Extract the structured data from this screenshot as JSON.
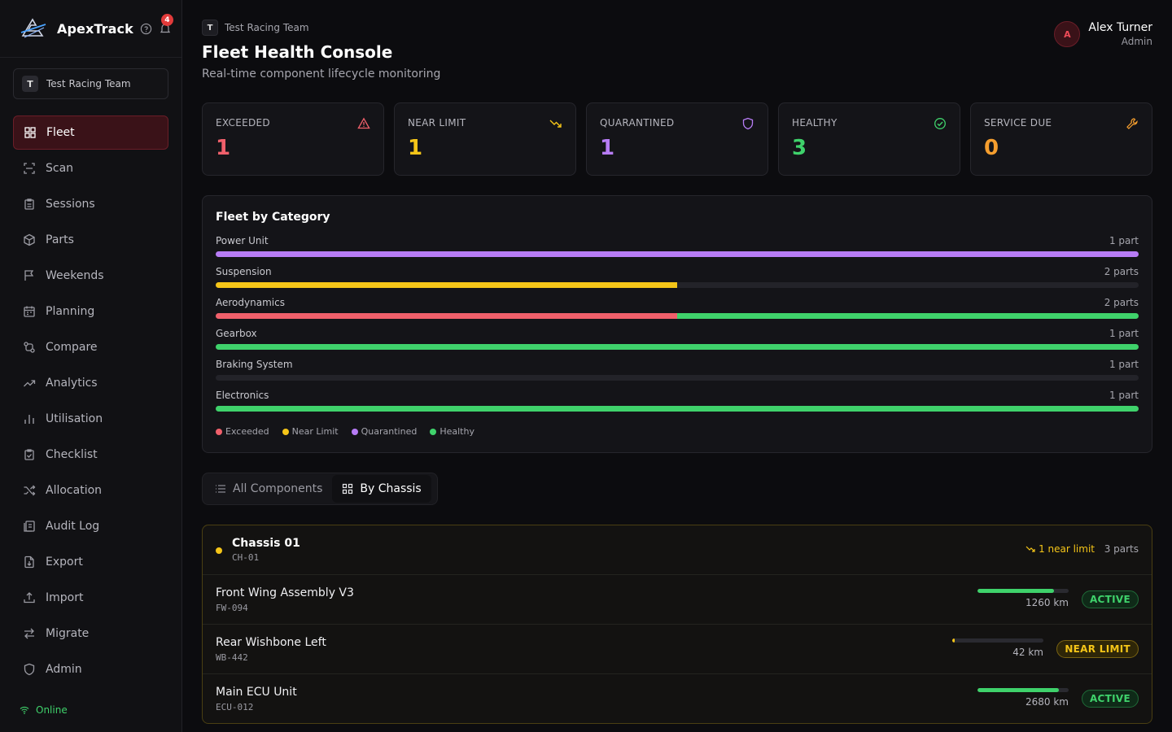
{
  "brand": {
    "name": "ApexTrack",
    "notifications": "4"
  },
  "team": {
    "initial": "T",
    "name": "Test Racing Team"
  },
  "nav": [
    {
      "label": "Fleet",
      "icon": "grid-icon",
      "active": true
    },
    {
      "label": "Scan",
      "icon": "scan-icon"
    },
    {
      "label": "Sessions",
      "icon": "clipboard-icon"
    },
    {
      "label": "Parts",
      "icon": "package-icon"
    },
    {
      "label": "Weekends",
      "icon": "flag-icon"
    },
    {
      "label": "Planning",
      "icon": "calendar-icon"
    },
    {
      "label": "Compare",
      "icon": "compare-icon"
    },
    {
      "label": "Analytics",
      "icon": "trending-up-icon"
    },
    {
      "label": "Utilisation",
      "icon": "bar-chart-icon"
    },
    {
      "label": "Checklist",
      "icon": "clipboard-check-icon"
    },
    {
      "label": "Allocation",
      "icon": "shuffle-icon"
    },
    {
      "label": "Audit Log",
      "icon": "log-icon"
    },
    {
      "label": "Export",
      "icon": "file-export-icon"
    },
    {
      "label": "Import",
      "icon": "upload-icon"
    },
    {
      "label": "Migrate",
      "icon": "arrows-icon"
    },
    {
      "label": "Admin",
      "icon": "shield-icon"
    }
  ],
  "status": {
    "online": "Online"
  },
  "header": {
    "breadcrumb_initial": "T",
    "breadcrumb": "Test Racing Team",
    "title": "Fleet Health Console",
    "subtitle": "Real-time component lifecycle monitoring"
  },
  "user": {
    "initial": "A",
    "name": "Alex Turner",
    "role": "Admin"
  },
  "stats": [
    {
      "label": "EXCEEDED",
      "value": "1",
      "color": "#f0606b",
      "icon": "alert-triangle-icon"
    },
    {
      "label": "NEAR LIMIT",
      "value": "1",
      "color": "#f5c518",
      "icon": "trending-down-icon"
    },
    {
      "label": "QUARANTINED",
      "value": "1",
      "color": "#b77cf5",
      "icon": "shield-icon"
    },
    {
      "label": "HEALTHY",
      "value": "3",
      "color": "#3fd26b",
      "icon": "check-circle-icon"
    },
    {
      "label": "SERVICE DUE",
      "value": "0",
      "color": "#f59e2e",
      "icon": "wrench-icon"
    }
  ],
  "categories": {
    "title": "Fleet by Category",
    "colors": {
      "exceeded": "#f0606b",
      "near": "#f5c518",
      "quarantined": "#b77cf5",
      "healthy": "#3fd26b"
    },
    "items": [
      {
        "name": "Power Unit",
        "count": "1 part",
        "segments": [
          {
            "status": "quarantined",
            "share": 1
          }
        ]
      },
      {
        "name": "Suspension",
        "count": "2 parts",
        "segments": [
          {
            "status": "near",
            "share": 0.5
          }
        ]
      },
      {
        "name": "Aerodynamics",
        "count": "2 parts",
        "segments": [
          {
            "status": "exceeded",
            "share": 0.5
          },
          {
            "status": "healthy",
            "share": 0.5
          }
        ]
      },
      {
        "name": "Gearbox",
        "count": "1 part",
        "segments": [
          {
            "status": "healthy",
            "share": 1
          }
        ]
      },
      {
        "name": "Braking System",
        "count": "1 part",
        "segments": []
      },
      {
        "name": "Electronics",
        "count": "1 part",
        "segments": [
          {
            "status": "healthy",
            "share": 1
          }
        ]
      }
    ],
    "legend": [
      {
        "label": "Exceeded",
        "status": "exceeded"
      },
      {
        "label": "Near Limit",
        "status": "near"
      },
      {
        "label": "Quarantined",
        "status": "quarantined"
      },
      {
        "label": "Healthy",
        "status": "healthy"
      }
    ]
  },
  "view_toggle": {
    "all": "All Components",
    "chassis": "By Chassis"
  },
  "chassis": {
    "name": "Chassis 01",
    "code": "CH-01",
    "near_limit": "1 near limit",
    "parts_count": "3 parts",
    "parts": [
      {
        "name": "Front Wing Assembly V3",
        "code": "FW-094",
        "life_remaining": 0.84,
        "km": "1260 km",
        "status": "ACTIVE",
        "status_type": "active",
        "bar_color": "#3fd26b"
      },
      {
        "name": "Rear Wishbone Left",
        "code": "WB-442",
        "life_remaining": 0.03,
        "km": "42 km",
        "status": "NEAR LIMIT",
        "status_type": "near",
        "bar_color": "#f5c518"
      },
      {
        "name": "Main ECU Unit",
        "code": "ECU-012",
        "life_remaining": 0.89,
        "km": "2680 km",
        "status": "ACTIVE",
        "status_type": "active",
        "bar_color": "#3fd26b"
      }
    ]
  }
}
